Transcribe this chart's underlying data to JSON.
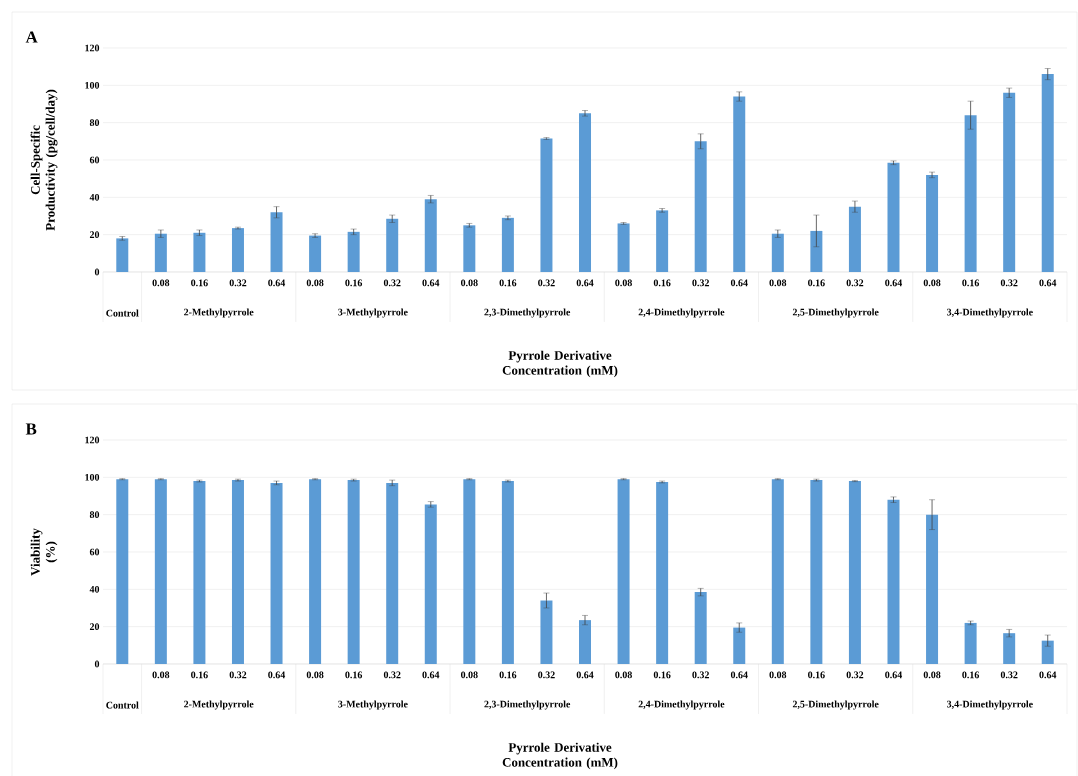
{
  "chart_data": [
    {
      "type": "bar",
      "title": "A",
      "ylabel": "Cell-Specific Productivity (pg/cell/day)",
      "xlabel": "Pyrrole Derivative Concentration (mM)",
      "categories": [
        null,
        "0.08",
        "0.16",
        "0.32",
        "0.64",
        "0.08",
        "0.16",
        "0.32",
        "0.64",
        "0.08",
        "0.16",
        "0.32",
        "0.64",
        "0.08",
        "0.16",
        "0.32",
        "0.64",
        "0.08",
        "0.16",
        "0.32",
        "0.64",
        "0.08",
        "0.16",
        "0.32",
        "0.64"
      ],
      "values": [
        18,
        20.5,
        21,
        23.5,
        32,
        19.5,
        21.5,
        28.5,
        39,
        25,
        29,
        71.5,
        85,
        26,
        33,
        70,
        94,
        20.5,
        22,
        35,
        58.5,
        52,
        84,
        96,
        106
      ],
      "errors": [
        1,
        2,
        1.5,
        0.5,
        3,
        1,
        1.5,
        2,
        2,
        1,
        1,
        0.5,
        1.5,
        0.5,
        1,
        4,
        2.5,
        2,
        8.5,
        3,
        1,
        1.5,
        7.5,
        2.5,
        3
      ],
      "color": "#5b9bd5",
      "ylim": [
        0,
        120
      ],
      "yticks": [
        0,
        20,
        40,
        60,
        80,
        100,
        120
      ],
      "grid": "y",
      "annotations": [
        "Control",
        "2-Methylpyrrole",
        "3-Methylpyrrole",
        "2,3-Dimethylpyrrole",
        "2,4-Dimethylpyrrole",
        "2,5-Dimethylpyrrole",
        "3,4-Dimethylpyrrole"
      ]
    },
    {
      "type": "bar",
      "title": "B",
      "ylabel": "Viability (%)",
      "xlabel": "Pyrrole Derivative Concentration (mM)",
      "categories": [
        null,
        "0.08",
        "0.16",
        "0.32",
        "0.64",
        "0.08",
        "0.16",
        "0.32",
        "0.64",
        "0.08",
        "0.16",
        "0.32",
        "0.64",
        "0.08",
        "0.16",
        "0.32",
        "0.64",
        "0.08",
        "0.16",
        "0.32",
        "0.64",
        "0.08",
        "0.16",
        "0.32",
        "0.64"
      ],
      "values": [
        99,
        99,
        98,
        98.5,
        97,
        99,
        98.5,
        97,
        85.5,
        99,
        98,
        34,
        23.5,
        99,
        97.5,
        38.5,
        19.5,
        99,
        98.5,
        98,
        88,
        80,
        22,
        16.5,
        12.5
      ],
      "errors": [
        0.3,
        0.3,
        0.5,
        0.5,
        1,
        0.3,
        0.5,
        1.5,
        1.5,
        0.3,
        0.5,
        4,
        2.5,
        0.3,
        0.5,
        2,
        2.5,
        0.3,
        0.5,
        0.3,
        1.5,
        8,
        1,
        2,
        3
      ],
      "color": "#5b9bd5",
      "ylim": [
        0,
        120
      ],
      "yticks": [
        0,
        20,
        40,
        60,
        80,
        100,
        120
      ],
      "grid": "y",
      "annotations": [
        "Control",
        "2-Methylpyrrole",
        "3-Methylpyrrole",
        "2,3-Dimethylpyrrole",
        "2,4-Dimethylpyrrole",
        "2,5-Dimethylpyrrole",
        "3,4-Dimethylpyrrole"
      ]
    }
  ]
}
